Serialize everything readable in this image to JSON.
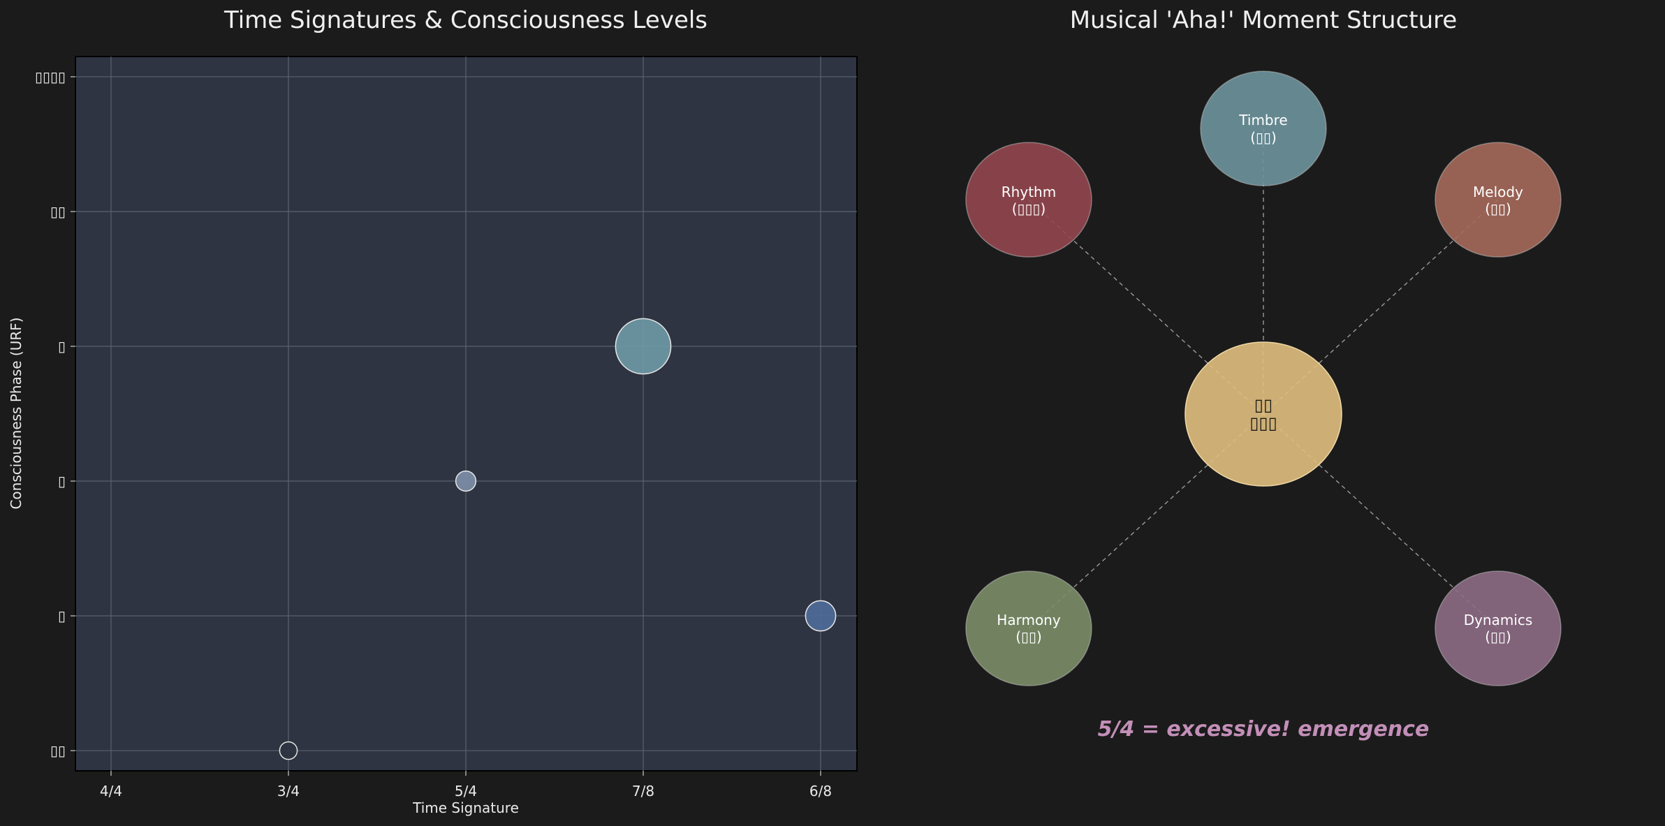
{
  "colors": {
    "background": "#1b1b1b",
    "plot_background": "#2e3441",
    "grid": "#5a6270"
  },
  "chart_data": [
    {
      "type": "scatter",
      "title": "Time Signatures & Consciousness Levels",
      "xlabel": "Time Signature",
      "ylabel": "Consciousness Phase (URF)",
      "categories": [
        "4/4",
        "3/4",
        "5/4",
        "7/8",
        "6/8"
      ],
      "y_tick_labels": [
        "▯▯",
        "▯",
        "▯",
        "▯",
        "▯▯",
        "▯▯▯▯"
      ],
      "ylim": [
        -0.15,
        5.15
      ],
      "grid": true,
      "points": [
        {
          "x": "3/4",
          "y": 0,
          "size": 0.7,
          "color": "#2e3441"
        },
        {
          "x": "5/4",
          "y": 2,
          "size": 0.8,
          "color": "#7d8fa8"
        },
        {
          "x": "7/8",
          "y": 3,
          "size": 2.2,
          "color": "#6f9aa6"
        },
        {
          "x": "6/8",
          "y": 1,
          "size": 1.2,
          "color": "#4f6c99"
        }
      ]
    },
    {
      "type": "diagram",
      "title": "Musical 'Aha!' Moment Structure",
      "center": {
        "line1": "▯▯",
        "line2": "▯▯▯",
        "color": "#e1bf7e"
      },
      "nodes": [
        {
          "name": "Rhythm",
          "sub": "(▯▯▯)",
          "color": "#94474f"
        },
        {
          "name": "Timbre",
          "sub": "(▯▯)",
          "color": "#6e939d"
        },
        {
          "name": "Melody",
          "sub": "(▯▯)",
          "color": "#a5695a"
        },
        {
          "name": "Harmony",
          "sub": "(▯▯)",
          "color": "#7c8e68"
        },
        {
          "name": "Dynamics",
          "sub": "(▯▯)",
          "color": "#8d6b85"
        }
      ],
      "annotation": "5/4 = excessive! emergence"
    }
  ]
}
